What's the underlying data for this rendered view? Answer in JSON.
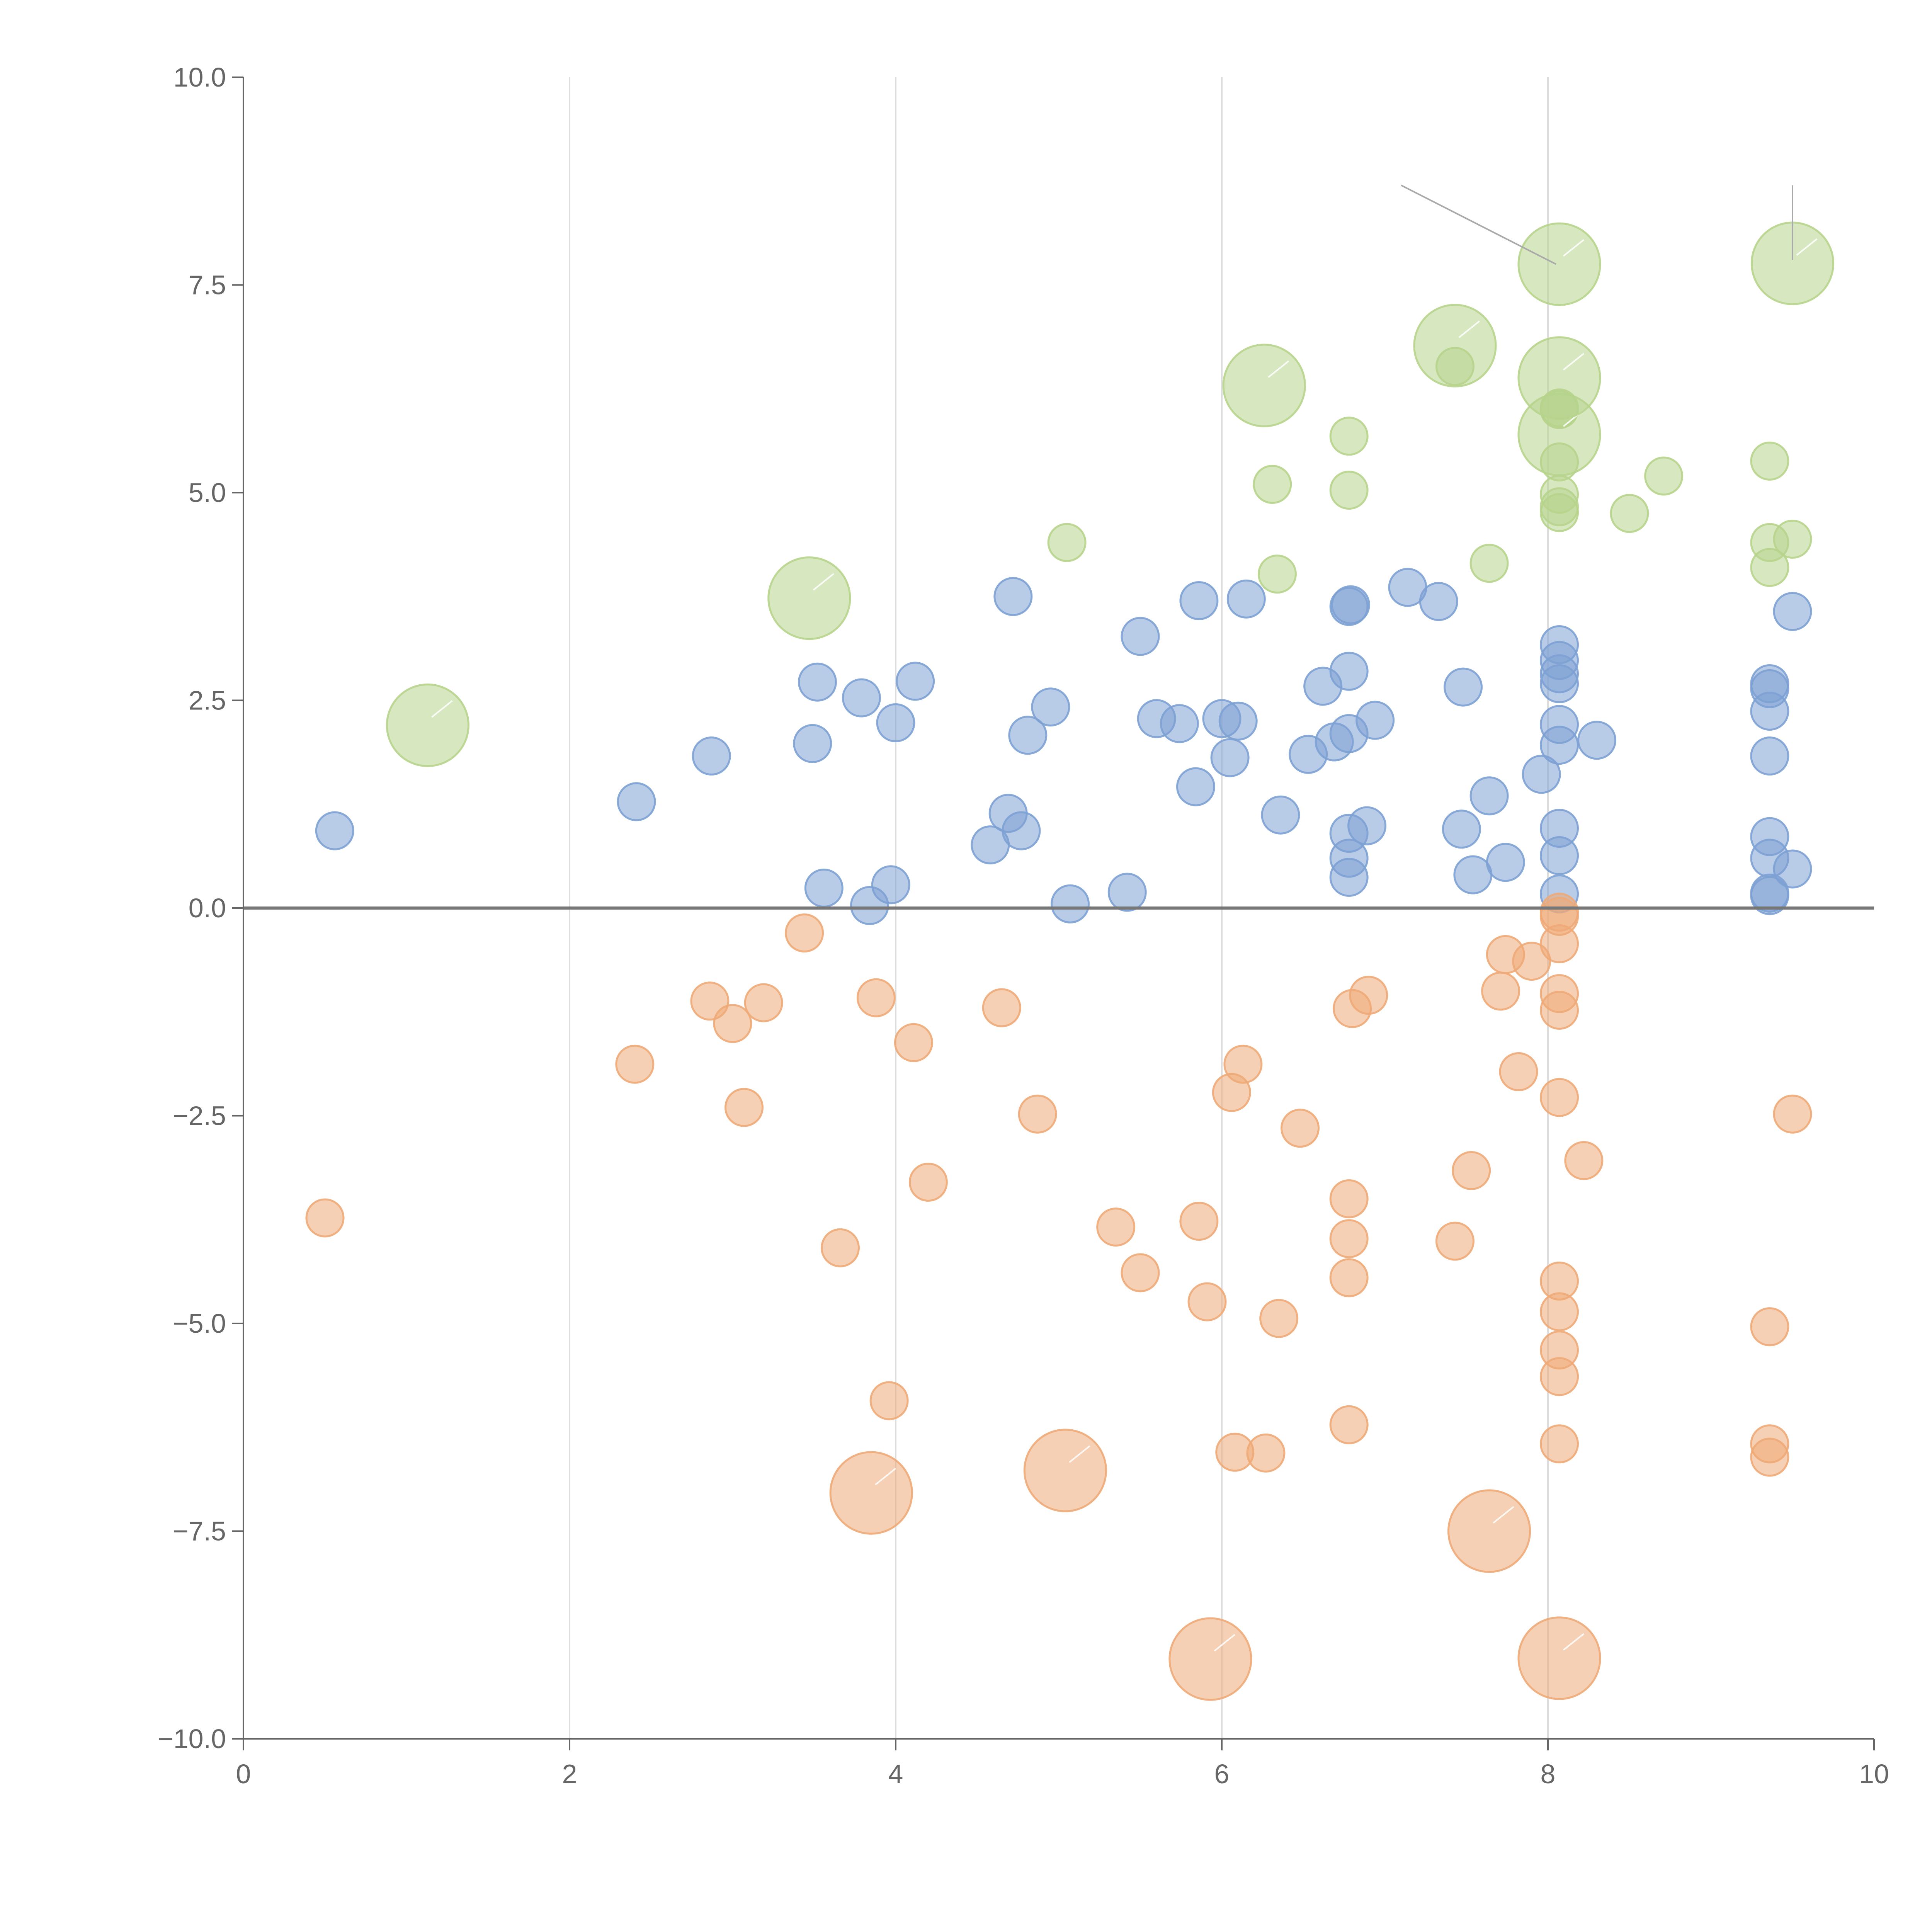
{
  "colors": {
    "positive": "#7da1d4",
    "negative": "#eeaa77",
    "highlight": "#b7d48c",
    "axis": "#666666",
    "grid": "#dddddd",
    "zero_line": "#777777"
  },
  "chart_data": {
    "type": "scatter",
    "title": "",
    "xlabel": "",
    "ylabel": "",
    "xlim": [
      0,
      10
    ],
    "ylim": [
      -10,
      10
    ],
    "x_ticks": [
      0,
      2,
      4,
      6,
      8,
      10
    ],
    "x_tick_labels": [
      "0",
      "2",
      "4",
      "6",
      "8",
      "10"
    ],
    "y_ticks": [
      10,
      7.5,
      5,
      2.5,
      0,
      -2.5,
      -5,
      -7.5,
      -10
    ],
    "y_tick_labels": [
      "10.0",
      "7.5",
      "5.0",
      "2.5",
      "0.0",
      "−2.5",
      "−5.0",
      "−7.5",
      "−10.0"
    ],
    "vertical_grid": [
      2,
      4,
      6,
      8
    ],
    "zero_line": 0,
    "series": [
      {
        "name": "positive",
        "color_key": "positive",
        "points": [
          {
            "x": 0.56,
            "y": 0.93,
            "size": 1
          },
          {
            "x": 2.41,
            "y": 1.28,
            "size": 1
          },
          {
            "x": 2.87,
            "y": 1.83,
            "size": 1
          },
          {
            "x": 3.49,
            "y": 1.98,
            "size": 1
          },
          {
            "x": 3.52,
            "y": 2.72,
            "size": 1
          },
          {
            "x": 3.56,
            "y": 0.24,
            "size": 1
          },
          {
            "x": 3.79,
            "y": 2.53,
            "size": 1
          },
          {
            "x": 3.84,
            "y": 0.03,
            "size": 1
          },
          {
            "x": 3.97,
            "y": 0.28,
            "size": 1
          },
          {
            "x": 4.0,
            "y": 2.23,
            "size": 1
          },
          {
            "x": 4.12,
            "y": 2.73,
            "size": 1
          },
          {
            "x": 4.58,
            "y": 0.76,
            "size": 1
          },
          {
            "x": 4.69,
            "y": 1.14,
            "size": 1
          },
          {
            "x": 4.72,
            "y": 3.75,
            "size": 1
          },
          {
            "x": 4.77,
            "y": 0.93,
            "size": 1
          },
          {
            "x": 4.81,
            "y": 2.08,
            "size": 1
          },
          {
            "x": 4.95,
            "y": 2.42,
            "size": 1
          },
          {
            "x": 5.07,
            "y": 0.05,
            "size": 1
          },
          {
            "x": 5.42,
            "y": 0.19,
            "size": 1
          },
          {
            "x": 5.5,
            "y": 3.27,
            "size": 1
          },
          {
            "x": 5.6,
            "y": 2.28,
            "size": 1
          },
          {
            "x": 5.74,
            "y": 2.22,
            "size": 1
          },
          {
            "x": 5.84,
            "y": 1.46,
            "size": 1
          },
          {
            "x": 5.86,
            "y": 3.7,
            "size": 1
          },
          {
            "x": 6.0,
            "y": 2.28,
            "size": 1
          },
          {
            "x": 6.05,
            "y": 1.81,
            "size": 1
          },
          {
            "x": 6.1,
            "y": 2.25,
            "size": 1
          },
          {
            "x": 6.15,
            "y": 3.72,
            "size": 1
          },
          {
            "x": 6.36,
            "y": 1.12,
            "size": 1
          },
          {
            "x": 6.53,
            "y": 1.85,
            "size": 1
          },
          {
            "x": 6.62,
            "y": 2.67,
            "size": 1
          },
          {
            "x": 6.69,
            "y": 2.0,
            "size": 1
          },
          {
            "x": 6.78,
            "y": 0.37,
            "size": 1
          },
          {
            "x": 6.78,
            "y": 0.6,
            "size": 1
          },
          {
            "x": 6.78,
            "y": 0.9,
            "size": 1
          },
          {
            "x": 6.78,
            "y": 2.1,
            "size": 1
          },
          {
            "x": 6.78,
            "y": 2.85,
            "size": 1
          },
          {
            "x": 6.78,
            "y": 3.63,
            "size": 1
          },
          {
            "x": 6.79,
            "y": 3.65,
            "size": 1
          },
          {
            "x": 6.89,
            "y": 0.99,
            "size": 1
          },
          {
            "x": 6.94,
            "y": 2.26,
            "size": 1
          },
          {
            "x": 7.14,
            "y": 3.86,
            "size": 1
          },
          {
            "x": 7.33,
            "y": 3.69,
            "size": 1
          },
          {
            "x": 7.47,
            "y": 0.95,
            "size": 1
          },
          {
            "x": 7.48,
            "y": 2.66,
            "size": 1
          },
          {
            "x": 7.54,
            "y": 0.4,
            "size": 1
          },
          {
            "x": 7.64,
            "y": 1.35,
            "size": 1
          },
          {
            "x": 7.74,
            "y": 0.55,
            "size": 1
          },
          {
            "x": 7.96,
            "y": 1.61,
            "size": 1
          },
          {
            "x": 8.07,
            "y": 0.17,
            "size": 1
          },
          {
            "x": 8.07,
            "y": 0.63,
            "size": 1
          },
          {
            "x": 8.07,
            "y": 0.96,
            "size": 1
          },
          {
            "x": 8.07,
            "y": 1.96,
            "size": 1
          },
          {
            "x": 8.07,
            "y": 2.21,
            "size": 1
          },
          {
            "x": 8.07,
            "y": 2.7,
            "size": 1
          },
          {
            "x": 8.07,
            "y": 2.82,
            "size": 1
          },
          {
            "x": 8.07,
            "y": 2.98,
            "size": 1
          },
          {
            "x": 8.07,
            "y": 3.17,
            "size": 1
          },
          {
            "x": 8.3,
            "y": 2.02,
            "size": 1
          },
          {
            "x": 9.36,
            "y": 0.15,
            "size": 1
          },
          {
            "x": 9.36,
            "y": 0.18,
            "size": 1
          },
          {
            "x": 9.36,
            "y": 0.6,
            "size": 1
          },
          {
            "x": 9.36,
            "y": 0.86,
            "size": 1
          },
          {
            "x": 9.36,
            "y": 1.83,
            "size": 1
          },
          {
            "x": 9.36,
            "y": 2.37,
            "size": 1
          },
          {
            "x": 9.36,
            "y": 2.64,
            "size": 1
          },
          {
            "x": 9.36,
            "y": 2.7,
            "size": 1
          },
          {
            "x": 9.5,
            "y": 0.47,
            "size": 1
          },
          {
            "x": 9.5,
            "y": 3.57,
            "size": 1
          }
        ]
      },
      {
        "name": "negative",
        "color_key": "negative",
        "points": [
          {
            "x": 0.5,
            "y": -3.73,
            "size": 1
          },
          {
            "x": 2.4,
            "y": -1.88,
            "size": 1
          },
          {
            "x": 2.86,
            "y": -1.12,
            "size": 1
          },
          {
            "x": 3.0,
            "y": -1.39,
            "size": 1
          },
          {
            "x": 3.07,
            "y": -2.4,
            "size": 1
          },
          {
            "x": 3.19,
            "y": -1.14,
            "size": 1
          },
          {
            "x": 3.44,
            "y": -0.3,
            "size": 1
          },
          {
            "x": 3.66,
            "y": -4.09,
            "size": 1
          },
          {
            "x": 3.88,
            "y": -1.08,
            "size": 1
          },
          {
            "x": 3.96,
            "y": -5.93,
            "size": 1
          },
          {
            "x": 4.11,
            "y": -1.62,
            "size": 1
          },
          {
            "x": 4.2,
            "y": -3.3,
            "size": 1
          },
          {
            "x": 4.65,
            "y": -1.2,
            "size": 1
          },
          {
            "x": 4.87,
            "y": -2.48,
            "size": 1
          },
          {
            "x": 5.35,
            "y": -3.84,
            "size": 1
          },
          {
            "x": 5.5,
            "y": -4.39,
            "size": 1
          },
          {
            "x": 5.86,
            "y": -3.77,
            "size": 1
          },
          {
            "x": 5.91,
            "y": -4.74,
            "size": 1
          },
          {
            "x": 6.06,
            "y": -2.22,
            "size": 1
          },
          {
            "x": 6.08,
            "y": -6.55,
            "size": 1
          },
          {
            "x": 6.13,
            "y": -1.88,
            "size": 1
          },
          {
            "x": 6.27,
            "y": -6.56,
            "size": 1
          },
          {
            "x": 6.35,
            "y": -4.94,
            "size": 1
          },
          {
            "x": 6.48,
            "y": -2.65,
            "size": 1
          },
          {
            "x": 6.78,
            "y": -3.5,
            "size": 1
          },
          {
            "x": 6.78,
            "y": -3.98,
            "size": 1
          },
          {
            "x": 6.78,
            "y": -4.45,
            "size": 1
          },
          {
            "x": 6.78,
            "y": -6.22,
            "size": 1
          },
          {
            "x": 6.8,
            "y": -1.21,
            "size": 1
          },
          {
            "x": 6.9,
            "y": -1.05,
            "size": 1
          },
          {
            "x": 7.43,
            "y": -4.01,
            "size": 1
          },
          {
            "x": 7.53,
            "y": -3.16,
            "size": 1
          },
          {
            "x": 7.71,
            "y": -1.0,
            "size": 1
          },
          {
            "x": 7.74,
            "y": -0.56,
            "size": 1
          },
          {
            "x": 7.82,
            "y": -1.97,
            "size": 1
          },
          {
            "x": 7.9,
            "y": -0.64,
            "size": 1
          },
          {
            "x": 8.07,
            "y": -0.05,
            "size": 1
          },
          {
            "x": 8.07,
            "y": -0.1,
            "size": 1
          },
          {
            "x": 8.07,
            "y": -0.43,
            "size": 1
          },
          {
            "x": 8.07,
            "y": -1.03,
            "size": 1
          },
          {
            "x": 8.07,
            "y": -1.23,
            "size": 1
          },
          {
            "x": 8.07,
            "y": -2.28,
            "size": 1
          },
          {
            "x": 8.07,
            "y": -4.49,
            "size": 1
          },
          {
            "x": 8.07,
            "y": -4.86,
            "size": 1
          },
          {
            "x": 8.07,
            "y": -5.32,
            "size": 1
          },
          {
            "x": 8.07,
            "y": -5.64,
            "size": 1
          },
          {
            "x": 8.07,
            "y": -6.45,
            "size": 1
          },
          {
            "x": 8.22,
            "y": -3.04,
            "size": 1
          },
          {
            "x": 9.36,
            "y": -5.04,
            "size": 1
          },
          {
            "x": 9.36,
            "y": -6.45,
            "size": 1
          },
          {
            "x": 9.36,
            "y": -6.61,
            "size": 1
          },
          {
            "x": 9.5,
            "y": -2.48,
            "size": 1
          },
          {
            "x": 3.85,
            "y": -7.04,
            "size": 2.2
          },
          {
            "x": 5.04,
            "y": -6.77,
            "size": 2.2
          },
          {
            "x": 5.93,
            "y": -9.04,
            "size": 2.2
          },
          {
            "x": 7.64,
            "y": -7.5,
            "size": 2.2
          },
          {
            "x": 8.07,
            "y": -9.03,
            "size": 2.2
          }
        ]
      },
      {
        "name": "highlight",
        "color_key": "highlight",
        "points": [
          {
            "x": 5.05,
            "y": 4.4,
            "size": 1
          },
          {
            "x": 6.31,
            "y": 5.1,
            "size": 1
          },
          {
            "x": 6.34,
            "y": 4.02,
            "size": 1
          },
          {
            "x": 6.78,
            "y": 5.03,
            "size": 1
          },
          {
            "x": 6.78,
            "y": 5.68,
            "size": 1
          },
          {
            "x": 7.43,
            "y": 6.52,
            "size": 1
          },
          {
            "x": 7.64,
            "y": 4.15,
            "size": 1
          },
          {
            "x": 8.07,
            "y": 4.76,
            "size": 1
          },
          {
            "x": 8.07,
            "y": 4.83,
            "size": 1
          },
          {
            "x": 8.07,
            "y": 4.98,
            "size": 1
          },
          {
            "x": 8.07,
            "y": 5.37,
            "size": 1
          },
          {
            "x": 8.07,
            "y": 6.0,
            "size": 1
          },
          {
            "x": 8.07,
            "y": 6.02,
            "size": 1
          },
          {
            "x": 8.5,
            "y": 4.75,
            "size": 1
          },
          {
            "x": 8.71,
            "y": 5.2,
            "size": 1
          },
          {
            "x": 9.36,
            "y": 4.1,
            "size": 1
          },
          {
            "x": 9.36,
            "y": 4.4,
            "size": 1
          },
          {
            "x": 9.36,
            "y": 5.38,
            "size": 1
          },
          {
            "x": 9.5,
            "y": 4.44,
            "size": 1
          },
          {
            "x": 1.13,
            "y": 2.2,
            "size": 2.2
          },
          {
            "x": 3.47,
            "y": 3.73,
            "size": 2.2
          },
          {
            "x": 6.26,
            "y": 6.29,
            "size": 2.2
          },
          {
            "x": 7.43,
            "y": 6.77,
            "size": 2.2
          },
          {
            "x": 8.07,
            "y": 5.7,
            "size": 2.2
          },
          {
            "x": 8.07,
            "y": 6.38,
            "size": 2.2
          },
          {
            "x": 8.07,
            "y": 7.75,
            "size": 2.2
          },
          {
            "x": 9.5,
            "y": 7.76,
            "size": 2.2
          }
        ]
      }
    ],
    "annotation_lines": [
      {
        "from": [
          7.1,
          8.7
        ],
        "to": [
          8.05,
          7.75
        ]
      },
      {
        "from": [
          9.5,
          8.7
        ],
        "to": [
          9.5,
          7.8
        ]
      }
    ]
  }
}
